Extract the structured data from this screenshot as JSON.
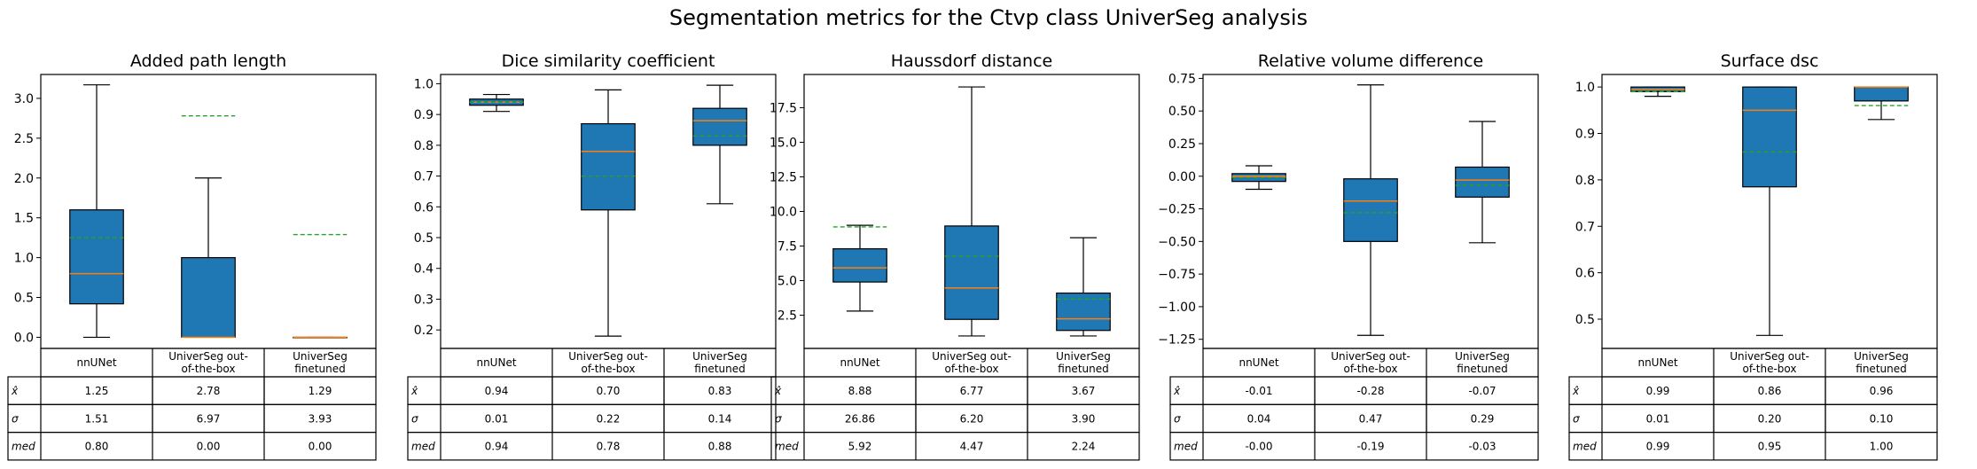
{
  "suptitle": "Segmentation metrics for the Ctvp class UniverSeg analysis",
  "colors": {
    "box": "#1f77b4",
    "median": "#ff7f0e",
    "mean": "#2ca02c",
    "line": "#000000"
  },
  "table": {
    "columns": [
      "nnUNet",
      "UniverSeg out-of-the-box",
      "UniverSeg finetuned"
    ],
    "row_labels": [
      "x̂",
      "σ",
      "med"
    ]
  },
  "chart_data": [
    {
      "type": "box",
      "title": "Added path length",
      "xlabel": "",
      "ylabel": "",
      "ylim": [
        -0.14,
        3.3
      ],
      "yticks": [
        0.0,
        0.5,
        1.0,
        1.5,
        2.0,
        2.5,
        3.0
      ],
      "ytick_labels": [
        "0.0",
        "0.5",
        "1.0",
        "1.5",
        "2.0",
        "2.5",
        "3.0"
      ],
      "categories": [
        "nnUNet",
        "UniverSeg out-of-the-box",
        "UniverSeg finetuned"
      ],
      "boxes": [
        {
          "whislo": 0.0,
          "q1": 0.42,
          "med": 0.8,
          "q3": 1.6,
          "whishi": 3.17,
          "mean": 1.25
        },
        {
          "whislo": 0.0,
          "q1": 0.0,
          "med": 0.0,
          "q3": 1.0,
          "whishi": 2.0,
          "mean": 2.78
        },
        {
          "whislo": 0.0,
          "q1": 0.0,
          "med": 0.0,
          "q3": 0.0,
          "whishi": 0.0,
          "mean": 1.29
        }
      ],
      "table_cells": [
        [
          "1.25",
          "2.78",
          "1.29"
        ],
        [
          "1.51",
          "6.97",
          "3.93"
        ],
        [
          "0.80",
          "0.00",
          "0.00"
        ]
      ]
    },
    {
      "type": "box",
      "title": "Dice similarity coefficient",
      "xlabel": "",
      "ylabel": "",
      "ylim": [
        0.14,
        1.03
      ],
      "yticks": [
        0.2,
        0.3,
        0.4,
        0.5,
        0.6,
        0.7,
        0.8,
        0.9,
        1.0
      ],
      "ytick_labels": [
        "0.2",
        "0.3",
        "0.4",
        "0.5",
        "0.6",
        "0.7",
        "0.8",
        "0.9",
        "1.0"
      ],
      "categories": [
        "nnUNet",
        "UniverSeg out-of-the-box",
        "UniverSeg finetuned"
      ],
      "boxes": [
        {
          "whislo": 0.91,
          "q1": 0.93,
          "med": 0.94,
          "q3": 0.95,
          "whishi": 0.965,
          "mean": 0.94
        },
        {
          "whislo": 0.18,
          "q1": 0.59,
          "med": 0.78,
          "q3": 0.87,
          "whishi": 0.98,
          "mean": 0.7
        },
        {
          "whislo": 0.61,
          "q1": 0.8,
          "med": 0.88,
          "q3": 0.92,
          "whishi": 0.995,
          "mean": 0.83
        }
      ],
      "table_cells": [
        [
          "0.94",
          "0.70",
          "0.83"
        ],
        [
          "0.01",
          "0.22",
          "0.14"
        ],
        [
          "0.94",
          "0.78",
          "0.88"
        ]
      ]
    },
    {
      "type": "box",
      "title": "Haussdorf distance",
      "xlabel": "",
      "ylabel": "",
      "ylim": [
        0.1,
        19.9
      ],
      "yticks": [
        2.5,
        5.0,
        7.5,
        10.0,
        12.5,
        15.0,
        17.5
      ],
      "ytick_labels": [
        "2.5",
        "5.0",
        "7.5",
        "10.0",
        "12.5",
        "15.0",
        "17.5"
      ],
      "categories": [
        "nnUNet",
        "UniverSeg out-of-the-box",
        "UniverSeg finetuned"
      ],
      "boxes": [
        {
          "whislo": 2.8,
          "q1": 4.9,
          "med": 5.92,
          "q3": 7.3,
          "whishi": 9.0,
          "mean": 8.88
        },
        {
          "whislo": 1.0,
          "q1": 2.2,
          "med": 4.47,
          "q3": 8.95,
          "whishi": 19.0,
          "mean": 6.77
        },
        {
          "whislo": 1.0,
          "q1": 1.4,
          "med": 2.24,
          "q3": 4.1,
          "whishi": 8.1,
          "mean": 3.67
        }
      ],
      "table_cells": [
        [
          "8.88",
          "6.77",
          "3.67"
        ],
        [
          "26.86",
          "6.20",
          "3.90"
        ],
        [
          "5.92",
          "4.47",
          "2.24"
        ]
      ]
    },
    {
      "type": "box",
      "title": "Relative volume difference",
      "xlabel": "",
      "ylabel": "",
      "ylim": [
        -1.32,
        0.78
      ],
      "yticks": [
        -1.25,
        -1.0,
        -0.75,
        -0.5,
        -0.25,
        0.0,
        0.25,
        0.5,
        0.75
      ],
      "ytick_labels": [
        "−1.25",
        "−1.00",
        "−0.75",
        "−0.50",
        "−0.25",
        "0.00",
        "0.25",
        "0.50",
        "0.75"
      ],
      "categories": [
        "nnUNet",
        "UniverSeg out-of-the-box",
        "UniverSeg finetuned"
      ],
      "boxes": [
        {
          "whislo": -0.1,
          "q1": -0.04,
          "med": 0.0,
          "q3": 0.02,
          "whishi": 0.08,
          "mean": -0.01
        },
        {
          "whislo": -1.22,
          "q1": -0.5,
          "med": -0.19,
          "q3": -0.02,
          "whishi": 0.7,
          "mean": -0.28
        },
        {
          "whislo": -0.51,
          "q1": -0.16,
          "med": -0.03,
          "q3": 0.07,
          "whishi": 0.42,
          "mean": -0.07
        }
      ],
      "table_cells": [
        [
          "-0.01",
          "-0.28",
          "-0.07"
        ],
        [
          "0.04",
          "0.47",
          "0.29"
        ],
        [
          "-0.00",
          "-0.19",
          "-0.03"
        ]
      ]
    },
    {
      "type": "box",
      "title": "Surface dsc",
      "xlabel": "",
      "ylabel": "",
      "ylim": [
        0.437,
        1.027
      ],
      "yticks": [
        0.5,
        0.6,
        0.7,
        0.8,
        0.9,
        1.0
      ],
      "ytick_labels": [
        "0.5",
        "0.6",
        "0.7",
        "0.8",
        "0.9",
        "1.0"
      ],
      "categories": [
        "nnUNet",
        "UniverSeg out-of-the-box",
        "UniverSeg finetuned"
      ],
      "boxes": [
        {
          "whislo": 0.98,
          "q1": 0.99,
          "med": 0.995,
          "q3": 1.0,
          "whishi": 1.0,
          "mean": 0.99
        },
        {
          "whislo": 0.465,
          "q1": 0.785,
          "med": 0.95,
          "q3": 1.0,
          "whishi": 1.0,
          "mean": 0.86
        },
        {
          "whislo": 0.93,
          "q1": 0.97,
          "med": 1.0,
          "q3": 1.0,
          "whishi": 1.0,
          "mean": 0.96
        }
      ],
      "table_cells": [
        [
          "0.99",
          "0.86",
          "0.96"
        ],
        [
          "0.01",
          "0.20",
          "0.10"
        ],
        [
          "0.99",
          "0.95",
          "1.00"
        ]
      ]
    }
  ]
}
